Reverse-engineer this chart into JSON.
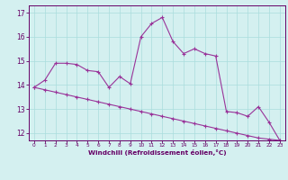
{
  "xlabel": "Windchill (Refroidissement éolien,°C)",
  "x_values": [
    0,
    1,
    2,
    3,
    4,
    5,
    6,
    7,
    8,
    9,
    10,
    11,
    12,
    13,
    14,
    15,
    16,
    17,
    18,
    19,
    20,
    21,
    22,
    23
  ],
  "line1_y": [
    13.9,
    14.2,
    14.9,
    14.9,
    14.85,
    14.6,
    14.55,
    13.9,
    14.35,
    14.05,
    16.0,
    16.55,
    16.8,
    15.8,
    15.3,
    15.5,
    15.3,
    15.2,
    12.9,
    12.85,
    12.7,
    13.1,
    12.45,
    11.7
  ],
  "line2_y": [
    13.9,
    13.8,
    13.7,
    13.6,
    13.5,
    13.4,
    13.3,
    13.2,
    13.1,
    13.0,
    12.9,
    12.8,
    12.7,
    12.6,
    12.5,
    12.4,
    12.3,
    12.2,
    12.1,
    12.0,
    11.9,
    11.8,
    11.75,
    11.7
  ],
  "line_color": "#993399",
  "bg_color": "#d4f0f0",
  "grid_color": "#aadddd",
  "axis_color": "#660066",
  "ylim": [
    11.7,
    17.3
  ],
  "xlim": [
    -0.5,
    23.5
  ],
  "yticks": [
    12,
    13,
    14,
    15,
    16,
    17
  ],
  "xticks": [
    0,
    1,
    2,
    3,
    4,
    5,
    6,
    7,
    8,
    9,
    10,
    11,
    12,
    13,
    14,
    15,
    16,
    17,
    18,
    19,
    20,
    21,
    22,
    23
  ]
}
